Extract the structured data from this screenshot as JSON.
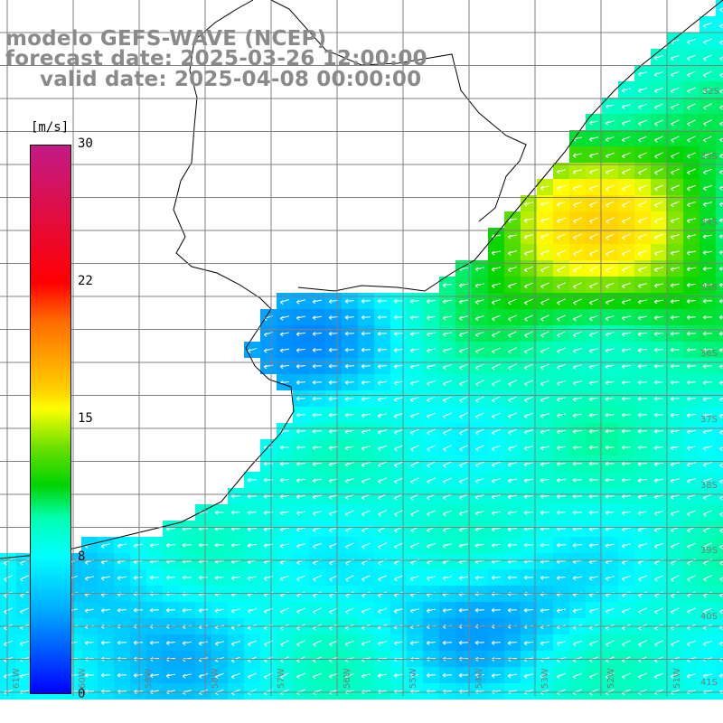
{
  "header": {
    "line1": "modelo GEFS-WAVE (NCEP)",
    "line2": "forecast date: 2025-03-26 12:00:00",
    "line3": "valid date: 2025-04-08 00:00:00"
  },
  "colorbar": {
    "unit": "[m/s]",
    "ticks": [
      "30",
      "22",
      "15",
      "8",
      "0"
    ],
    "colors": [
      "#c21a86",
      "#ff0000",
      "#ff6a00",
      "#ffff00",
      "#00d400",
      "#00ffff",
      "#0050ff",
      "#0000ff"
    ]
  },
  "lat_labels": [
    "32S",
    "33S",
    "34S",
    "35S",
    "36S",
    "37S",
    "38S",
    "39S",
    "40S",
    "41S"
  ],
  "lon_labels": [
    "61W",
    "60W",
    "59W",
    "58W",
    "57W",
    "56W",
    "55W",
    "54W",
    "53W",
    "52W",
    "51W"
  ],
  "colors": {
    "land": "#ffffff",
    "coast": "#000000",
    "grid": "#808080",
    "arrows": "#ffffff"
  }
}
